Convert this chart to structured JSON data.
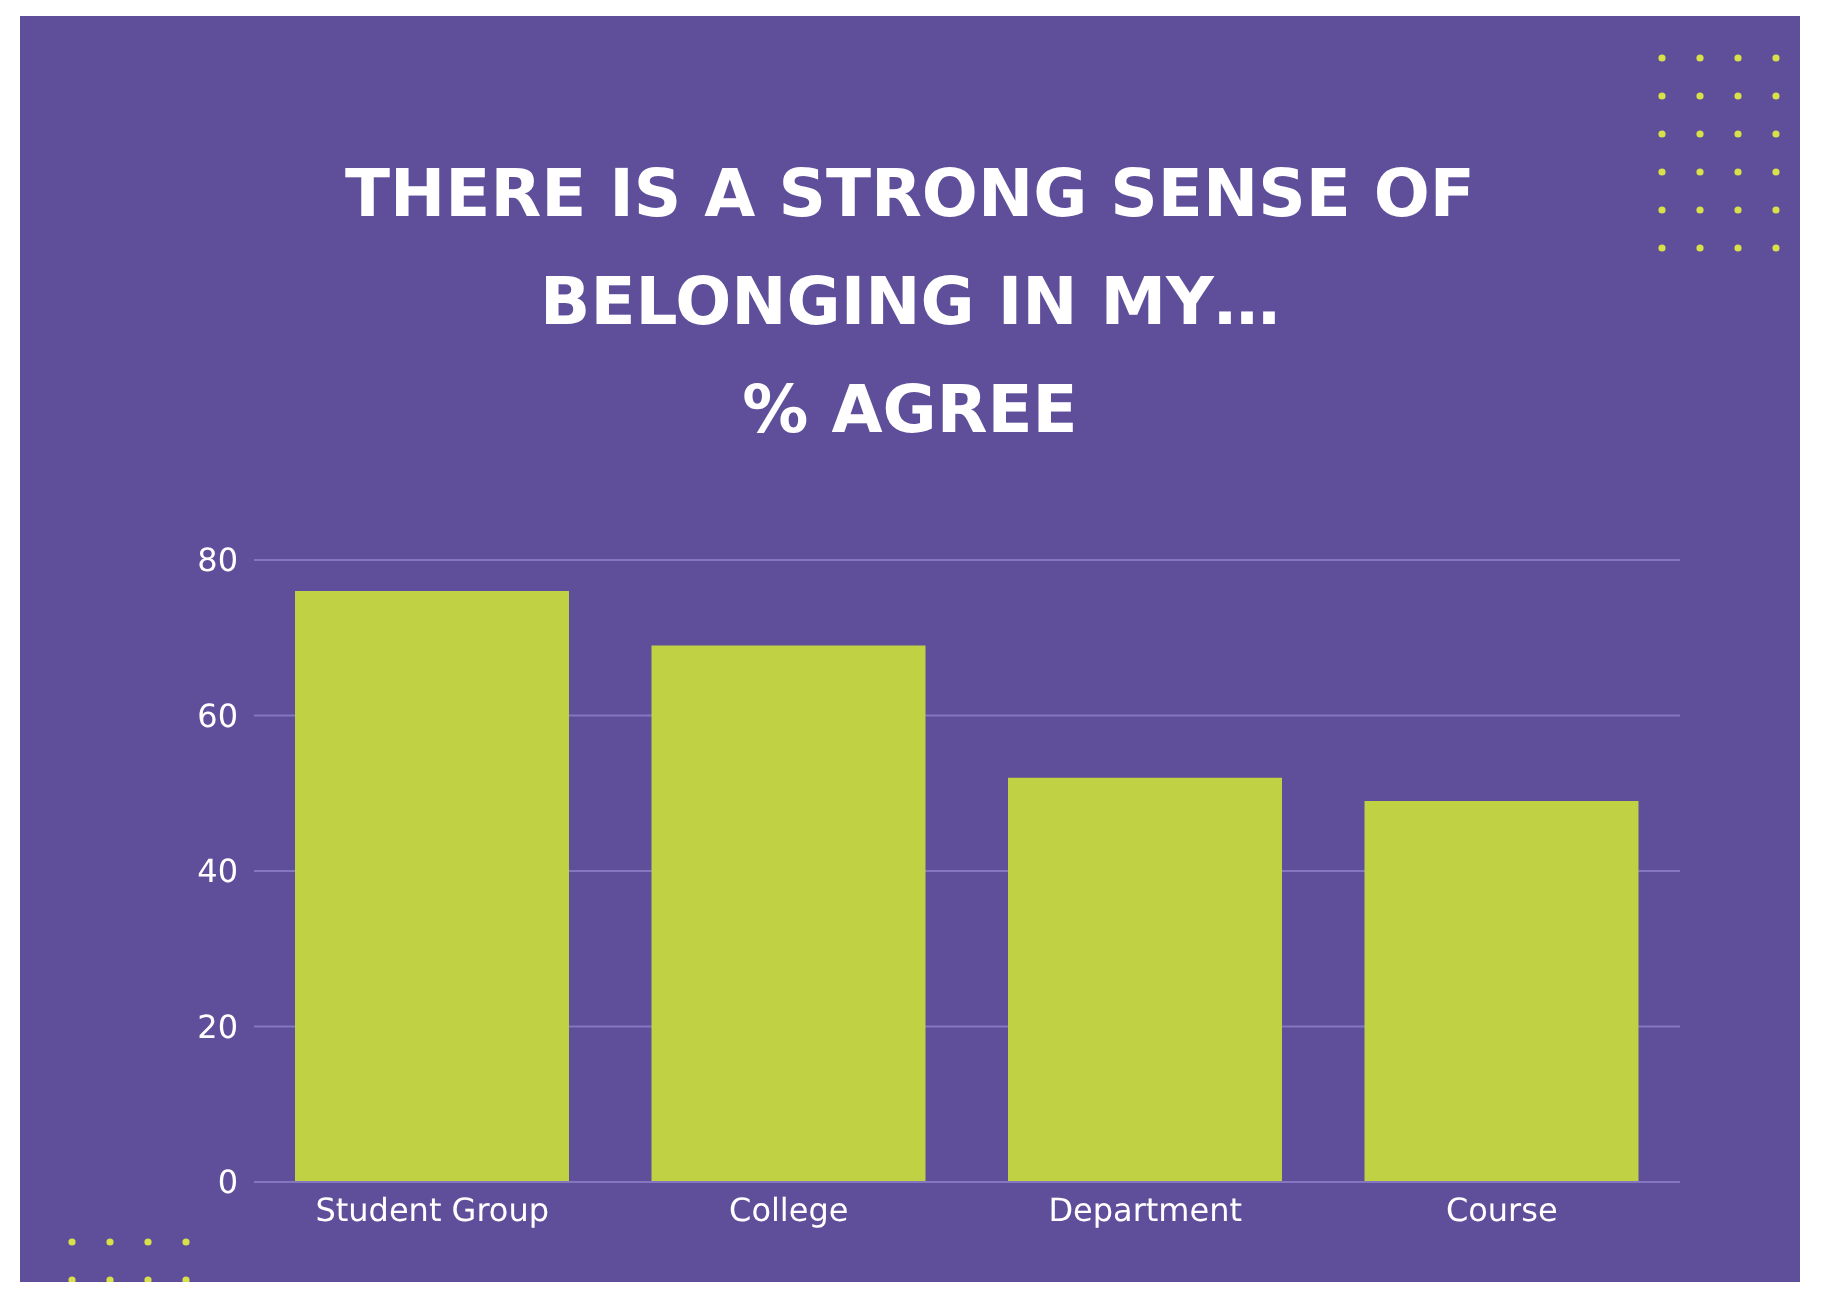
{
  "chart_data": {
    "type": "bar",
    "title": "THERE IS A STRONG SENSE OF BELONGING IN MY…",
    "subtitle": "% AGREE",
    "categories": [
      "Student Group",
      "College",
      "Department",
      "Course"
    ],
    "values": [
      76,
      69,
      52,
      49
    ],
    "color": "#c0d144",
    "ylim": [
      0,
      80
    ],
    "yticks": [
      0,
      20,
      40,
      60,
      80
    ],
    "grid": "y",
    "legend": false
  }
}
